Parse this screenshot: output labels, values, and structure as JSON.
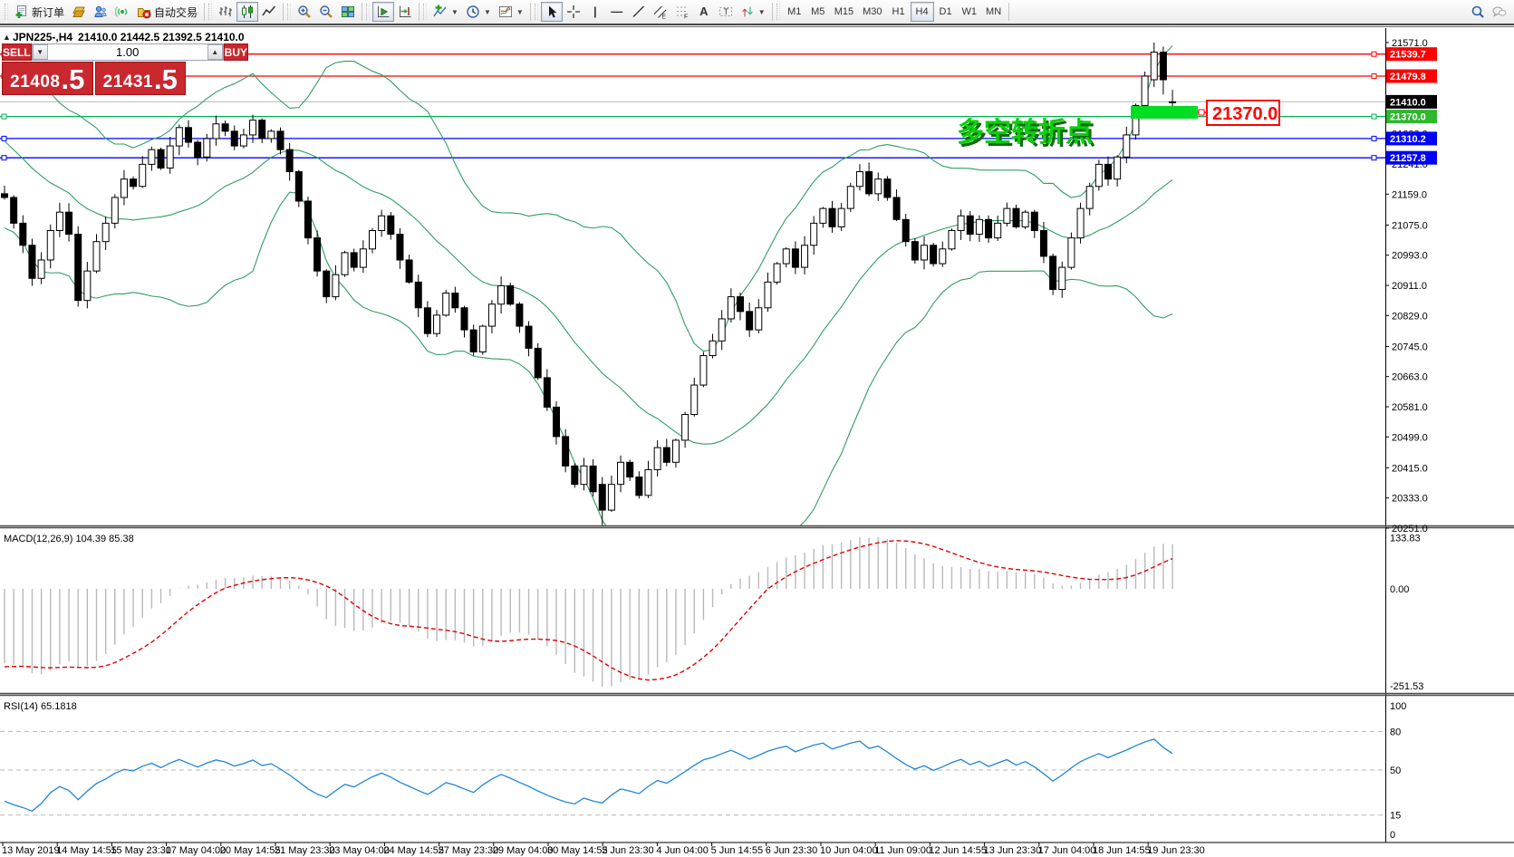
{
  "toolbar": {
    "groups": [
      {
        "items": [
          {
            "name": "new-order",
            "label": "新订单"
          },
          {
            "name": "market-watch"
          },
          {
            "name": "community"
          },
          {
            "name": "signals"
          },
          {
            "name": "autotrading",
            "label": "自动交易"
          }
        ]
      },
      {
        "items": [
          {
            "name": "bar-chart"
          },
          {
            "name": "candlestick-chart",
            "active": true
          },
          {
            "name": "line-chart"
          }
        ]
      },
      {
        "items": [
          {
            "name": "zoom-in"
          },
          {
            "name": "zoom-out"
          },
          {
            "name": "tile-windows"
          }
        ]
      },
      {
        "items": [
          {
            "name": "auto-scroll",
            "active": true
          },
          {
            "name": "chart-shift"
          }
        ]
      },
      {
        "items": [
          {
            "name": "indicators",
            "dropdown": true
          },
          {
            "name": "periods",
            "dropdown": true
          },
          {
            "name": "templates",
            "dropdown": true
          }
        ]
      },
      {
        "items": [
          {
            "name": "cursor",
            "active": true
          },
          {
            "name": "crosshair"
          },
          {
            "name": "vertical-line",
            "glyph": "|"
          },
          {
            "name": "horizontal-line",
            "glyph": "—"
          },
          {
            "name": "trend-line"
          },
          {
            "name": "equidistant-channel"
          },
          {
            "name": "fibonacci"
          },
          {
            "name": "text",
            "glyph": "A"
          },
          {
            "name": "text-label",
            "glyph": "T"
          },
          {
            "name": "arrows",
            "dropdown": true
          }
        ]
      },
      {
        "items": [
          {
            "name": "tf-m1",
            "label": "M1"
          },
          {
            "name": "tf-m5",
            "label": "M5"
          },
          {
            "name": "tf-m15",
            "label": "M15"
          },
          {
            "name": "tf-m30",
            "label": "M30"
          },
          {
            "name": "tf-h1",
            "label": "H1"
          },
          {
            "name": "tf-h4",
            "label": "H4",
            "active": true
          },
          {
            "name": "tf-d1",
            "label": "D1"
          },
          {
            "name": "tf-w1",
            "label": "W1"
          },
          {
            "name": "tf-mn",
            "label": "MN"
          }
        ]
      }
    ],
    "right_items": [
      {
        "name": "search"
      },
      {
        "name": "chat"
      }
    ]
  },
  "chart": {
    "collapse_arrow": "▲",
    "title_symbol": "JPN225-,H4",
    "title_ohlc": "21410.0 21442.5 21392.5 21410.0"
  },
  "trade_panel": {
    "sell_label": "SELL",
    "buy_label": "BUY",
    "volume": "1.00",
    "step_down": "▼",
    "step_up": "▲",
    "sell_price_main": "21408",
    "sell_price_frac": ".5",
    "buy_price_main": "21431",
    "buy_price_frac": ".5"
  },
  "chart_data": {
    "type": "candlestick",
    "symbol": "JPN225-",
    "period": "H4",
    "y_axis": {
      "top_value": 21613,
      "bottom_value": 20251,
      "ticks": [
        "21571.0",
        "21323.0",
        "21241.0",
        "21159.0",
        "21075.0",
        "20993.0",
        "20911.0",
        "20829.0",
        "20745.0",
        "20663.0",
        "20581.0",
        "20499.0",
        "20415.0",
        "20333.0",
        "20251.0"
      ]
    },
    "hlines": [
      {
        "value": 21539.7,
        "label": "21539.7",
        "color": "#ff0000",
        "squares": true
      },
      {
        "value": 21479.8,
        "label": "21479.8",
        "color": "#ff0000",
        "squares": true
      },
      {
        "value": 21410.0,
        "label": "21410.0",
        "color": "#b8b8b8",
        "label_bg": "#000000",
        "squares": false
      },
      {
        "value": 21370.0,
        "label": "21370.0",
        "color": "#00b050",
        "label_bg": "#2eb82e",
        "squares": true
      },
      {
        "value": 21310.2,
        "label": "21310.2",
        "color": "#0000ff",
        "squares": true
      },
      {
        "value": 21257.8,
        "label": "21257.8",
        "color": "#0000ff",
        "squares": true
      }
    ],
    "time_labels": [
      "13 May 2019",
      "14 May 14:55",
      "15 May 23:30",
      "17 May 04:00",
      "20 May 14:55",
      "21 May 23:30",
      "23 May 04:00",
      "24 May 14:55",
      "27 May 23:30",
      "29 May 04:00",
      "30 May 14:55",
      "2 Jun 23:30",
      "4 Jun 04:00",
      "5 Jun 14:55",
      "6 Jun 23:30",
      "10 Jun 04:00",
      "11 Jun 09:00",
      "12 Jun 14:55",
      "13 Jun 23:30",
      "17 Jun 04:00",
      "18 Jun 14:55",
      "19 Jun 23:30"
    ],
    "warmup_closes": [
      21880,
      21840,
      21790,
      21750,
      21700,
      21660,
      21700,
      21650,
      21600,
      21560,
      21520,
      21560,
      21500,
      21450,
      21400,
      21440,
      21380,
      21330,
      21370,
      21310,
      21260,
      21300,
      21250,
      21200,
      21240,
      21180,
      21220,
      21170,
      21200,
      21160
    ],
    "closes": [
      21150,
      21080,
      21020,
      20930,
      20980,
      21060,
      21110,
      21050,
      20870,
      20950,
      21030,
      21080,
      21150,
      21200,
      21180,
      21240,
      21280,
      21230,
      21290,
      21340,
      21300,
      21260,
      21310,
      21350,
      21330,
      21290,
      21320,
      21360,
      21310,
      21330,
      21280,
      21220,
      21140,
      21040,
      20950,
      20880,
      20940,
      21000,
      20960,
      21010,
      21060,
      21100,
      21050,
      20980,
      20920,
      20850,
      20780,
      20830,
      20890,
      20850,
      20790,
      20730,
      20800,
      20860,
      20910,
      20860,
      20800,
      20740,
      20660,
      20580,
      20500,
      20420,
      20370,
      20420,
      20350,
      20300,
      20370,
      20430,
      20390,
      20340,
      20410,
      20470,
      20430,
      20490,
      20560,
      20640,
      20720,
      20760,
      20820,
      20880,
      20840,
      20790,
      20850,
      20920,
      20970,
      21010,
      20960,
      21020,
      21080,
      21120,
      21070,
      21120,
      21180,
      21220,
      21160,
      21200,
      21150,
      21090,
      21030,
      20980,
      21020,
      20970,
      21010,
      21060,
      21100,
      21050,
      21090,
      21040,
      21080,
      21120,
      21070,
      21110,
      21060,
      20990,
      20900,
      20960,
      21040,
      21120,
      21180,
      21240,
      21200,
      21260,
      21320,
      21400,
      21480,
      21545,
      21470,
      21410
    ],
    "bar_overrides": {
      "65": [
        20370,
        20390,
        20251,
        20300
      ],
      "125": [
        21470,
        21571,
        21450,
        21545
      ],
      "126": [
        21545,
        21560,
        21430,
        21470
      ],
      "127": [
        21410,
        21442.5,
        21392.5,
        21410
      ]
    },
    "bollinger": {
      "period": 20,
      "deviation": 2,
      "color": "#2e9e63"
    },
    "macd": {
      "label": "MACD(12,26,9) 104.39 85.38",
      "fast": 12,
      "slow": 26,
      "signal": 9,
      "axis_labels": [
        "133.83",
        "0.00",
        "-251.53"
      ],
      "hist_color": "#b9b9b9",
      "signal_color": "#e00000"
    },
    "rsi": {
      "label": "RSI(14) 65.1818",
      "period": 14,
      "axis_labels": [
        "100",
        "80",
        "50",
        "15",
        "0"
      ],
      "level_lines": [
        80,
        50,
        15
      ],
      "color": "#1f86d6"
    },
    "annotations": {
      "note_text": "多空转折点",
      "note_color": "#0ad00a",
      "note_shadow": "#0c6b0c",
      "callout_label": "21370.0",
      "callout_color": "#ff0000",
      "rect_color": "#00dd22"
    }
  }
}
